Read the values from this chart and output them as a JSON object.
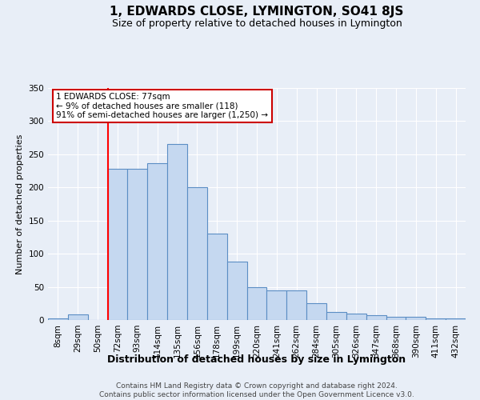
{
  "title": "1, EDWARDS CLOSE, LYMINGTON, SO41 8JS",
  "subtitle": "Size of property relative to detached houses in Lymington",
  "xlabel": "Distribution of detached houses by size in Lymington",
  "ylabel": "Number of detached properties",
  "footer_line1": "Contains HM Land Registry data © Crown copyright and database right 2024.",
  "footer_line2": "Contains public sector information licensed under the Open Government Licence v3.0.",
  "categories": [
    "8sqm",
    "29sqm",
    "50sqm",
    "72sqm",
    "93sqm",
    "114sqm",
    "135sqm",
    "156sqm",
    "178sqm",
    "199sqm",
    "220sqm",
    "241sqm",
    "262sqm",
    "284sqm",
    "305sqm",
    "326sqm",
    "347sqm",
    "368sqm",
    "390sqm",
    "411sqm",
    "432sqm"
  ],
  "values": [
    2,
    8,
    0,
    228,
    228,
    237,
    265,
    200,
    130,
    88,
    50,
    45,
    45,
    25,
    12,
    10,
    7,
    5,
    5,
    3,
    3
  ],
  "bar_color": "#c5d8f0",
  "bar_edge_color": "#5b8ec4",
  "background_color": "#e8eef7",
  "plot_bg_color": "#e8eef7",
  "grid_color": "#ffffff",
  "red_line_x": 3.0,
  "annotation_text_line1": "1 EDWARDS CLOSE: 77sqm",
  "annotation_text_line2": "← 9% of detached houses are smaller (118)",
  "annotation_text_line3": "91% of semi-detached houses are larger (1,250) →",
  "annotation_box_facecolor": "#ffffff",
  "annotation_border_color": "#cc0000",
  "ylim": [
    0,
    350
  ],
  "yticks": [
    0,
    50,
    100,
    150,
    200,
    250,
    300,
    350
  ],
  "title_fontsize": 11,
  "subtitle_fontsize": 9,
  "ylabel_fontsize": 8,
  "xlabel_fontsize": 9,
  "tick_fontsize": 7.5,
  "footer_fontsize": 6.5
}
